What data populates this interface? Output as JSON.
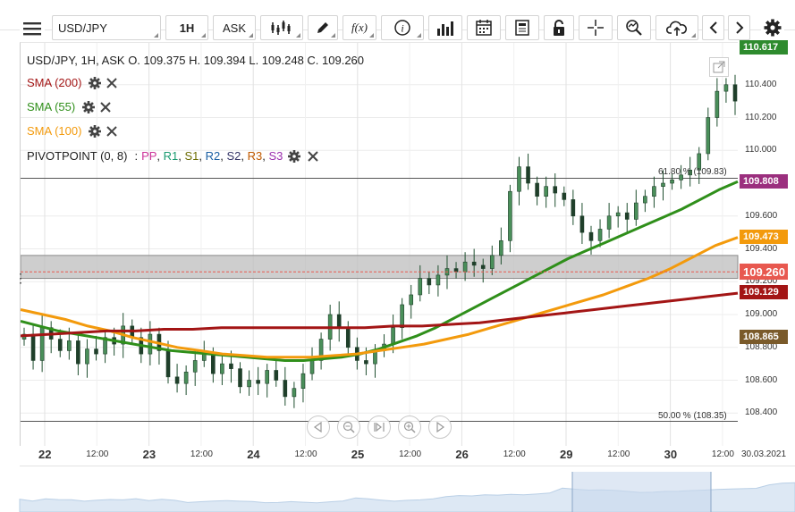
{
  "toolbar": {
    "symbol": "USD/JPY",
    "timeframe": "1H",
    "price_side": "ASK",
    "fx_label": "f(x)",
    "info_label": "i",
    "nav_back_icon": "chevron-left-icon",
    "nav_forward_icon": "chevron-right-icon"
  },
  "legend": {
    "ohlc": "USD/JPY, 1H, ASK   O. 109.375 H. 109.394 L. 109.248 C. 109.260",
    "indicators": [
      {
        "label": "SMA (200)",
        "color": "#a31515"
      },
      {
        "label": "SMA (55)",
        "color": "#2f8f1a"
      },
      {
        "label": "SMA (100)",
        "color": "#f39a0c"
      }
    ],
    "pivot": {
      "prefix": "PIVOTPOINT (0, 8)",
      "sep": ":",
      "items": [
        {
          "label": "PP",
          "color": "#cc3399"
        },
        {
          "label": "R1",
          "color": "#1a9a70"
        },
        {
          "label": "S1",
          "color": "#6b6b00"
        },
        {
          "label": "R2",
          "color": "#1a5fa3"
        },
        {
          "label": "S2",
          "color": "#333366"
        },
        {
          "label": "R3",
          "color": "#c05a00"
        },
        {
          "label": "S3",
          "color": "#9b2fae"
        }
      ]
    }
  },
  "price_tags": [
    {
      "value": "110.617",
      "color": "#2e8b2e"
    },
    {
      "value": "109.808",
      "color": "#9b2f7e"
    },
    {
      "value": "109.473",
      "color": "#f39a0c"
    },
    {
      "value": "109.260",
      "color": "#e8584f"
    },
    {
      "value": "109.129",
      "color": "#a31515"
    },
    {
      "value": "108.865",
      "color": "#7a5a2a"
    }
  ],
  "fib": {
    "upper": "61.80 % (109.83)",
    "lower": "50.00 % (108.35)"
  },
  "date_label": "30.03.2021",
  "chart_data": {
    "type": "line",
    "title": "USD/JPY, 1H, ASK",
    "ohlc_last": {
      "open": 109.375,
      "high": 109.394,
      "low": 109.248,
      "close": 109.26
    },
    "ylim": [
      108.2,
      110.66
    ],
    "yticks": [
      110.4,
      110.2,
      110.0,
      109.6,
      109.4,
      109.2,
      109.0,
      108.8,
      108.6,
      108.4
    ],
    "x_tick_labels": [
      "22",
      "12:00",
      "23",
      "12:00",
      "24",
      "12:00",
      "25",
      "12:00",
      "26",
      "12:00",
      "29",
      "12:00",
      "30",
      "12:00"
    ],
    "x_tick_bold": [
      true,
      false,
      true,
      false,
      true,
      false,
      true,
      false,
      true,
      false,
      true,
      false,
      true,
      false
    ],
    "grid": true,
    "series": [
      {
        "name": "USD/JPY",
        "kind": "price",
        "color": "#1f5f3a",
        "values": [
          108.88,
          108.72,
          108.92,
          108.85,
          108.78,
          108.84,
          108.7,
          108.79,
          108.76,
          108.86,
          108.82,
          108.93,
          108.86,
          108.76,
          108.88,
          108.78,
          108.62,
          108.58,
          108.65,
          108.72,
          108.76,
          108.64,
          108.7,
          108.67,
          108.56,
          108.6,
          108.58,
          108.66,
          108.6,
          108.5,
          108.55,
          108.64,
          108.72,
          108.85,
          109.0,
          108.92,
          108.8,
          108.72,
          108.7,
          108.78,
          108.82,
          108.92,
          109.06,
          109.12,
          109.22,
          109.18,
          109.24,
          109.28,
          109.26,
          109.32,
          109.3,
          109.28,
          109.36,
          109.45,
          109.75,
          109.9,
          109.8,
          109.72,
          109.78,
          109.74,
          109.7,
          109.6,
          109.5,
          109.45,
          109.52,
          109.6,
          109.62,
          109.58,
          109.68,
          109.72,
          109.78,
          109.8,
          109.82,
          109.85,
          109.88,
          109.98,
          110.2,
          110.36,
          110.4,
          110.3
        ]
      },
      {
        "name": "SMA (55)",
        "color": "#2f8f1a",
        "width": 3,
        "values": [
          108.96,
          108.93,
          108.9,
          108.88,
          108.86,
          108.84,
          108.82,
          108.8,
          108.78,
          108.77,
          108.76,
          108.75,
          108.74,
          108.73,
          108.72,
          108.72,
          108.73,
          108.74,
          108.76,
          108.79,
          108.83,
          108.87,
          108.92,
          108.98,
          109.04,
          109.1,
          109.16,
          109.22,
          109.28,
          109.34,
          109.39,
          109.44,
          109.49,
          109.54,
          109.59,
          109.64,
          109.7,
          109.76,
          109.81
        ]
      },
      {
        "name": "SMA (100)",
        "color": "#f39a0c",
        "width": 3,
        "values": [
          109.03,
          109.0,
          108.97,
          108.93,
          108.9,
          108.86,
          108.83,
          108.8,
          108.78,
          108.76,
          108.75,
          108.74,
          108.74,
          108.74,
          108.75,
          108.76,
          108.78,
          108.8,
          108.82,
          108.85,
          108.88,
          108.92,
          108.96,
          109.0,
          109.04,
          109.08,
          109.12,
          109.17,
          109.22,
          109.28,
          109.35,
          109.42,
          109.47
        ]
      },
      {
        "name": "SMA (200)",
        "color": "#a31515",
        "width": 3,
        "values": [
          108.87,
          108.88,
          108.89,
          108.9,
          108.9,
          108.91,
          108.91,
          108.92,
          108.92,
          108.92,
          108.92,
          108.92,
          108.92,
          108.93,
          108.93,
          108.94,
          108.95,
          108.97,
          108.99,
          109.01,
          109.03,
          109.05,
          109.07,
          109.09,
          109.11,
          109.13
        ]
      }
    ],
    "levels": [
      {
        "name": "61.80 %",
        "value": 109.83
      },
      {
        "name": "50.00 %",
        "value": 108.35
      }
    ],
    "pivot_band": [
      109.22,
      109.36
    ]
  }
}
